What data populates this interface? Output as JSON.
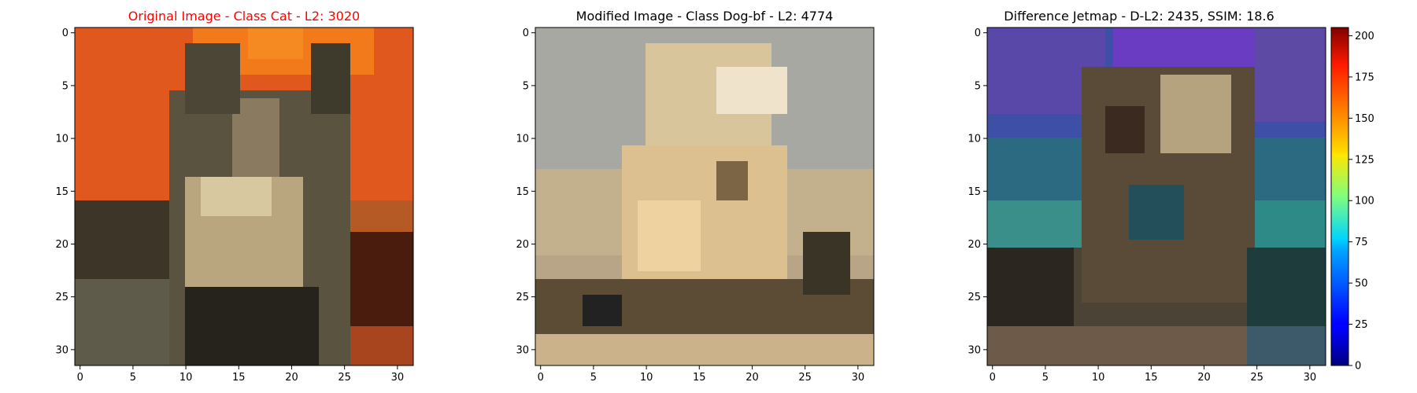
{
  "chart_data": [
    {
      "type": "image",
      "title": "Original Image - Class Cat - L2: 3020",
      "title_color": "#ff0000",
      "xlim": [
        -0.5,
        31.5
      ],
      "ylim": [
        31.5,
        -0.5
      ],
      "xticks": [
        0,
        5,
        10,
        15,
        20,
        25,
        30
      ],
      "yticks": [
        0,
        5,
        10,
        15,
        20,
        25,
        30
      ],
      "pixel_grid": [
        32,
        32
      ]
    },
    {
      "type": "image",
      "title": "Modified Image - Class Dog-bf - L2: 4774",
      "title_color": "#000000",
      "xlim": [
        -0.5,
        31.5
      ],
      "ylim": [
        31.5,
        -0.5
      ],
      "xticks": [
        0,
        5,
        10,
        15,
        20,
        25,
        30
      ],
      "yticks": [
        0,
        5,
        10,
        15,
        20,
        25,
        30
      ],
      "pixel_grid": [
        32,
        32
      ]
    },
    {
      "type": "heatmap",
      "title": "Difference Jetmap - D-L2: 2435, SSIM: 18.6",
      "title_color": "#000000",
      "xlim": [
        -0.5,
        31.5
      ],
      "ylim": [
        31.5,
        -0.5
      ],
      "xticks": [
        0,
        5,
        10,
        15,
        20,
        25,
        30
      ],
      "yticks": [
        0,
        5,
        10,
        15,
        20,
        25,
        30
      ],
      "pixel_grid": [
        32,
        32
      ],
      "colorbar": {
        "colormap": "jet",
        "range": [
          0,
          205
        ],
        "ticks": [
          0,
          25,
          50,
          75,
          100,
          125,
          150,
          175,
          200
        ]
      }
    }
  ]
}
